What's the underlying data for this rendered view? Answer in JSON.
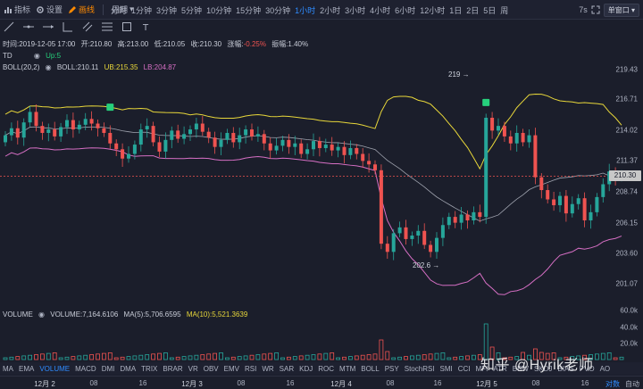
{
  "toolbar": {
    "indicators_label": "指标",
    "settings_label": "设置",
    "drawline_label": "画线",
    "period_label": "周期",
    "intervals": [
      "分时",
      "1分钟",
      "3分钟",
      "5分钟",
      "10分钟",
      "15分钟",
      "30分钟",
      "1小时",
      "2小时",
      "3小时",
      "4小时",
      "6小时",
      "12小时",
      "1日",
      "2日",
      "5日",
      "周"
    ],
    "active_interval": "1小时",
    "right_code": "7s",
    "window_mode": "单窗口"
  },
  "info": {
    "time": "时间:2019-12-05 17:00",
    "open": "开:210.80",
    "high": "高:213.00",
    "low": "低:210.05",
    "close": "收:210.30",
    "change_label": "涨幅:",
    "change": "-0.25%",
    "amplitude": "振幅:1.40%",
    "td_label": "TD",
    "td_value": "Up:5",
    "boll_label": "BOLL(20,2)",
    "boll_mid": "BOLL:210.11",
    "boll_ub": "UB:215.35",
    "boll_lb": "LB:204.87"
  },
  "volume_info": {
    "label": "VOLUME",
    "volume": "VOLUME:7,164.6106",
    "ma5": "MA(5):5,706.6595",
    "ma10": "MA(10):5,521.3639"
  },
  "price_axis": {
    "ticks": [
      "219.43",
      "216.71",
      "214.02",
      "211.37",
      "208.74",
      "206.15",
      "203.60",
      "201.07"
    ],
    "current": "210.30"
  },
  "volume_axis": {
    "ticks": [
      "60.0k",
      "40.0k",
      "20.0k"
    ]
  },
  "annotations": {
    "high_marker": "219",
    "low_marker": "202.6"
  },
  "indicator_tabs": [
    "MA",
    "EMA",
    "VOLUME",
    "MACD",
    "DMI",
    "DMA",
    "TRIX",
    "BRAR",
    "VR",
    "OBV",
    "EMV",
    "RSI",
    "WR",
    "SAR",
    "KDJ",
    "ROC",
    "MTM",
    "BOLL",
    "PSY",
    "StochRSI",
    "SMI",
    "CCI",
    "MFI",
    "ATR",
    "BBW",
    "SKDJ",
    "BIAS",
    "PVO",
    "AO"
  ],
  "active_indicator": "VOLUME",
  "time_axis": {
    "labels": [
      "12月 2",
      "08",
      "16",
      "12月 3",
      "08",
      "16",
      "12月 4",
      "08",
      "16",
      "12月 5",
      "08",
      "16"
    ],
    "log_label": "对数",
    "auto_label": "自动"
  },
  "watermark": "知乎 @Hyrik老师",
  "colors": {
    "up": "#26a69a",
    "down": "#ef5350",
    "ub": "#e8d73a",
    "mid": "#c0c4d0",
    "lb": "#d66fc4",
    "accent": "#2f8cff",
    "background": "#1b1e2b"
  }
}
